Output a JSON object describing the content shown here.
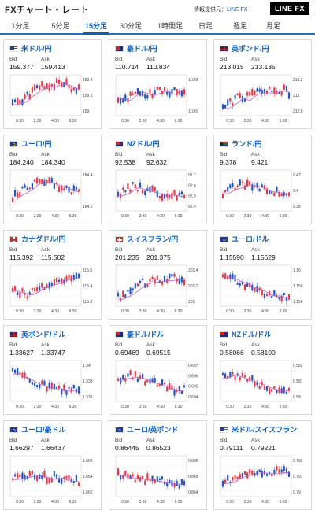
{
  "header": {
    "title": "FXチャート・レート",
    "provider_label": "情報提供元：",
    "provider_name": "LINE FX",
    "logo_text": "LINE FX"
  },
  "tabs": [
    {
      "label": "1分足",
      "active": false
    },
    {
      "label": "5分足",
      "active": false
    },
    {
      "label": "15分足",
      "active": true
    },
    {
      "label": "30分足",
      "active": false
    },
    {
      "label": "1時間足",
      "active": false
    },
    {
      "label": "日足",
      "active": false
    },
    {
      "label": "週足",
      "active": false
    },
    {
      "label": "月足",
      "active": false
    }
  ],
  "bid_label": "Bid",
  "ask_label": "Ask",
  "time_labels": [
    "0:30",
    "2:30",
    "4:30",
    "6:30"
  ],
  "colors": {
    "accent": "#0b5fc1",
    "up": "#e8374a",
    "down": "#1f55c8",
    "ma": "#c45fc4"
  },
  "pairs": [
    {
      "name": "米ドル/円",
      "flag": "us",
      "bid": "159.377",
      "ask": "159.413",
      "y_labels": [
        "159.4",
        "159.2",
        "159"
      ],
      "trend": [
        0.3,
        0.35,
        0.5,
        0.62,
        0.75,
        0.72,
        0.8,
        0.78,
        0.7,
        0.65
      ]
    },
    {
      "name": "豪ドル/円",
      "flag": "au",
      "bid": "110.714",
      "ask": "110.834",
      "y_labels": [
        "110.8",
        "110.6"
      ],
      "trend": [
        0.45,
        0.4,
        0.55,
        0.6,
        0.52,
        0.58,
        0.62,
        0.55,
        0.66,
        0.6
      ]
    },
    {
      "name": "英ポンド/円",
      "flag": "gb",
      "bid": "213.015",
      "ask": "213.135",
      "y_labels": [
        "213.2",
        "213",
        "212.8"
      ],
      "trend": [
        0.2,
        0.3,
        0.45,
        0.4,
        0.55,
        0.6,
        0.58,
        0.65,
        0.62,
        0.58
      ]
    },
    {
      "name": "ユーロ/円",
      "flag": "eu",
      "bid": "184.240",
      "ask": "184.340",
      "y_labels": [
        "184.4",
        "184.2"
      ],
      "trend": [
        0.35,
        0.45,
        0.55,
        0.7,
        0.78,
        0.7,
        0.62,
        0.58,
        0.5,
        0.48
      ]
    },
    {
      "name": "NZドル/円",
      "flag": "nz",
      "bid": "92.538",
      "ask": "92.632",
      "y_labels": [
        "92.7",
        "92.6",
        "92.5",
        "92.4"
      ],
      "trend": [
        0.4,
        0.48,
        0.6,
        0.55,
        0.5,
        0.45,
        0.4,
        0.42,
        0.38,
        0.4
      ]
    },
    {
      "name": "ランド/円",
      "flag": "za",
      "bid": "9.378",
      "ask": "9.421",
      "y_labels": [
        "9.42",
        "9.4",
        "9.38"
      ],
      "trend": [
        0.45,
        0.55,
        0.6,
        0.62,
        0.65,
        0.58,
        0.5,
        0.48,
        0.45,
        0.35
      ]
    },
    {
      "name": "カナダドル/円",
      "flag": "ca",
      "bid": "115.392",
      "ask": "115.502",
      "y_labels": [
        "115.5",
        "115.4",
        "115.3"
      ],
      "trend": [
        0.4,
        0.35,
        0.3,
        0.4,
        0.5,
        0.55,
        0.6,
        0.68,
        0.72,
        0.75
      ]
    },
    {
      "name": "スイスフラン/円",
      "flag": "ch",
      "bid": "201.235",
      "ask": "201.375",
      "y_labels": [
        "201.4",
        "201.2",
        "201"
      ],
      "trend": [
        0.2,
        0.28,
        0.4,
        0.55,
        0.6,
        0.62,
        0.65,
        0.66,
        0.68,
        0.66
      ]
    },
    {
      "name": "ユーロ/ドル",
      "flag": "eu",
      "bid": "1.15590",
      "ask": "1.15629",
      "y_labels": [
        "1.16",
        "1.158",
        "1.156"
      ],
      "trend": [
        0.75,
        0.7,
        0.62,
        0.55,
        0.45,
        0.4,
        0.3,
        0.25,
        0.22,
        0.2
      ]
    },
    {
      "name": "英ポンド/ドル",
      "flag": "gb",
      "bid": "1.33627",
      "ask": "1.33747",
      "y_labels": [
        "1.34",
        "1.338",
        "1.336"
      ],
      "trend": [
        0.7,
        0.62,
        0.55,
        0.45,
        0.38,
        0.35,
        0.3,
        0.28,
        0.3,
        0.32
      ]
    },
    {
      "name": "豪ドル/ドル",
      "flag": "au",
      "bid": "0.69469",
      "ask": "0.69515",
      "y_labels": [
        "0.697",
        "0.696",
        "0.695",
        "0.694"
      ],
      "trend": [
        0.55,
        0.6,
        0.62,
        0.58,
        0.5,
        0.45,
        0.38,
        0.32,
        0.28,
        0.3
      ]
    },
    {
      "name": "NZドル/ドル",
      "flag": "nz",
      "bid": "0.58066",
      "ask": "0.58100",
      "y_labels": [
        "0.582",
        "0.581",
        "0.58"
      ],
      "trend": [
        0.6,
        0.68,
        0.62,
        0.55,
        0.5,
        0.42,
        0.35,
        0.3,
        0.28,
        0.3
      ]
    },
    {
      "name": "ユーロ/豪ドル",
      "flag": "eu",
      "bid": "1.66297",
      "ask": "1.66437",
      "y_labels": [
        "1.666",
        "1.664",
        "1.662"
      ],
      "trend": [
        0.45,
        0.48,
        0.52,
        0.55,
        0.5,
        0.45,
        0.48,
        0.42,
        0.4,
        0.38
      ]
    },
    {
      "name": "ユーロ/英ポンド",
      "flag": "eu",
      "bid": "0.86445",
      "ask": "0.86523",
      "y_labels": [
        "0.866",
        "0.865",
        "0.864"
      ],
      "trend": [
        0.55,
        0.5,
        0.48,
        0.45,
        0.42,
        0.4,
        0.38,
        0.35,
        0.32,
        0.3
      ]
    },
    {
      "name": "米ドル/スイスフラン",
      "flag": "us",
      "bid": "0.79111",
      "ask": "0.79221",
      "y_labels": [
        "0.792",
        "0.791",
        "0.79"
      ],
      "trend": [
        0.35,
        0.4,
        0.5,
        0.55,
        0.6,
        0.62,
        0.58,
        0.6,
        0.62,
        0.58
      ]
    }
  ]
}
